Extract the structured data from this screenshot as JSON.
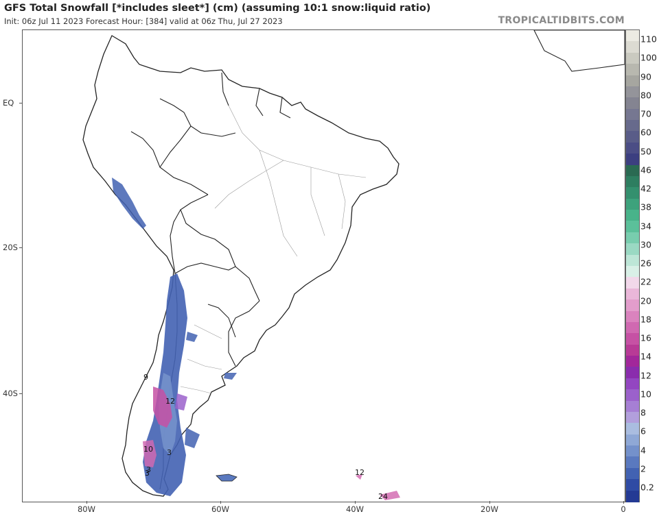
{
  "header": {
    "title": "GFS Total Snowfall [*includes sleet*] (cm) (assuming 10:1 snow:liquid ratio)",
    "subtitle": "Init: 06z Jul 11 2023   Forecast Hour: [384]   valid at 06z Thu, Jul 27 2023",
    "brand": "TROPICALTIDBITS.COM"
  },
  "axes": {
    "lat_labels": [
      "EQ",
      "20S",
      "40S"
    ],
    "lon_labels": [
      "80W",
      "60W",
      "40W",
      "20W",
      "0"
    ]
  },
  "colorbar": {
    "labels": [
      "110",
      "100",
      "90",
      "80",
      "70",
      "60",
      "50",
      "46",
      "42",
      "38",
      "34",
      "30",
      "26",
      "22",
      "20",
      "18",
      "16",
      "14",
      "12",
      "10",
      "8",
      "6",
      "4",
      "2",
      "0.2"
    ],
    "colors": [
      "#ecebe3",
      "#dcdbd2",
      "#cacac0",
      "#b8b8af",
      "#a6a6a0",
      "#94949a",
      "#848491",
      "#767791",
      "#676a8c",
      "#595c88",
      "#4b4d85",
      "#3c3f80",
      "#2a6a52",
      "#2e7e60",
      "#34906e",
      "#3da27c",
      "#48b38a",
      "#5bc09a",
      "#78cdae",
      "#9ad9c3",
      "#bde6d7",
      "#d9f0e7",
      "#f2d8ea",
      "#eab7d9",
      "#e39dcc",
      "#da83be",
      "#d069b1",
      "#c651a4",
      "#b83a96",
      "#a2279a",
      "#8a2cad",
      "#9346c1",
      "#9b61cb",
      "#a67fd4",
      "#b29fdc",
      "#aabde0",
      "#8fa8d6",
      "#7491cb",
      "#5a79bf",
      "#4262b2",
      "#2f4ba4",
      "#243a94"
    ]
  },
  "map": {
    "contour_labels": [
      "9",
      "12",
      "3",
      "10",
      "3",
      "3",
      "12",
      "24"
    ]
  }
}
